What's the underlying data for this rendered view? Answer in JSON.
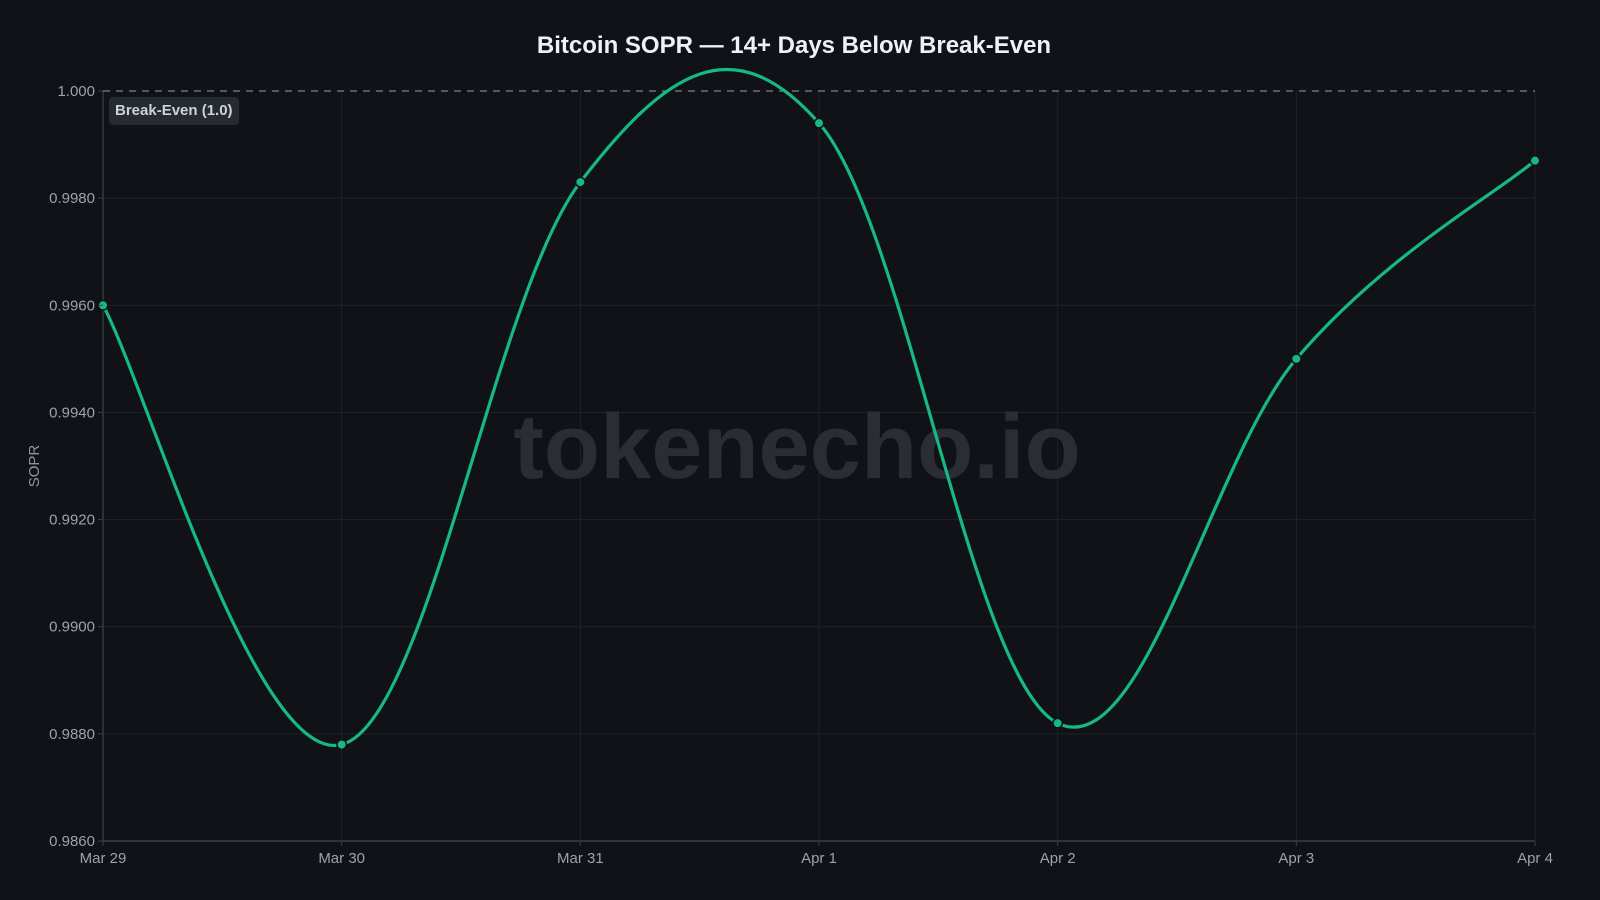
{
  "chart_data": {
    "type": "line",
    "title": "Bitcoin SOPR — 14+ Days Below Break-Even",
    "xlabel": "",
    "ylabel": "SOPR",
    "categories": [
      "Mar 29",
      "Mar 30",
      "Mar 31",
      "Apr 1",
      "Apr 2",
      "Apr 3",
      "Apr 4"
    ],
    "series": [
      {
        "name": "SOPR",
        "color": "#16b981",
        "values": [
          0.996,
          0.9878,
          0.9983,
          0.9994,
          0.9882,
          0.995,
          0.9987
        ]
      }
    ],
    "ylim": [
      0.986,
      1.0
    ],
    "yticks": [
      "0.9860",
      "0.9880",
      "0.9900",
      "0.9920",
      "0.9940",
      "0.9960",
      "0.9980",
      "1.000"
    ],
    "yticks_values": [
      0.986,
      0.988,
      0.99,
      0.992,
      0.994,
      0.996,
      0.998,
      1.0
    ],
    "grid": true,
    "legend": null,
    "annotations": [
      {
        "type": "hline",
        "y": 1.0,
        "style": "dashed",
        "label": "Break-Even (1.0)"
      }
    ],
    "watermark": "tokenecho.io"
  },
  "colors": {
    "background": "#111217",
    "line": "#16b981",
    "grid": "#1f2228",
    "axis": "#3a3f47",
    "break_even": "#7d838c"
  }
}
